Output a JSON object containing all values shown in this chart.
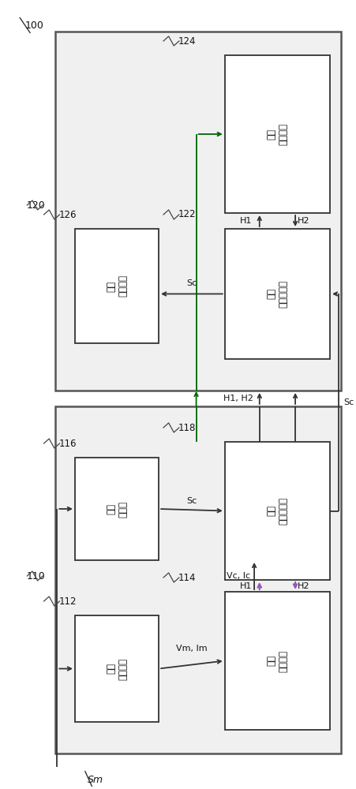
{
  "bg_color": "#ffffff",
  "box_face": "#ffffff",
  "outer_face": "#f0f0f0",
  "box_edge": "#333333",
  "lc": "#333333",
  "pc": "#9955bb",
  "gc": "#006600",
  "fig_w": 4.52,
  "fig_h": 10.0,
  "outer_120": [
    0.155,
    0.505,
    0.8,
    0.455
  ],
  "outer_110": [
    0.155,
    0.045,
    0.8,
    0.44
  ],
  "b124": [
    0.63,
    0.73,
    0.295,
    0.2
  ],
  "b122": [
    0.63,
    0.545,
    0.295,
    0.165
  ],
  "b126": [
    0.21,
    0.565,
    0.235,
    0.145
  ],
  "b116": [
    0.21,
    0.29,
    0.235,
    0.13
  ],
  "b118": [
    0.63,
    0.265,
    0.295,
    0.175
  ],
  "b112": [
    0.21,
    0.085,
    0.235,
    0.135
  ],
  "b114": [
    0.63,
    0.075,
    0.295,
    0.175
  ],
  "lbl_124": "交握\n控制单元",
  "lbl_122": "第二\n输出入端口",
  "lbl_126": "电力\n存储单元",
  "lbl_116": "电压\n转换器",
  "lbl_118": "第一\n输出入端口",
  "lbl_112": "输入\n检测单元",
  "lbl_114": "传送\n控制单元"
}
